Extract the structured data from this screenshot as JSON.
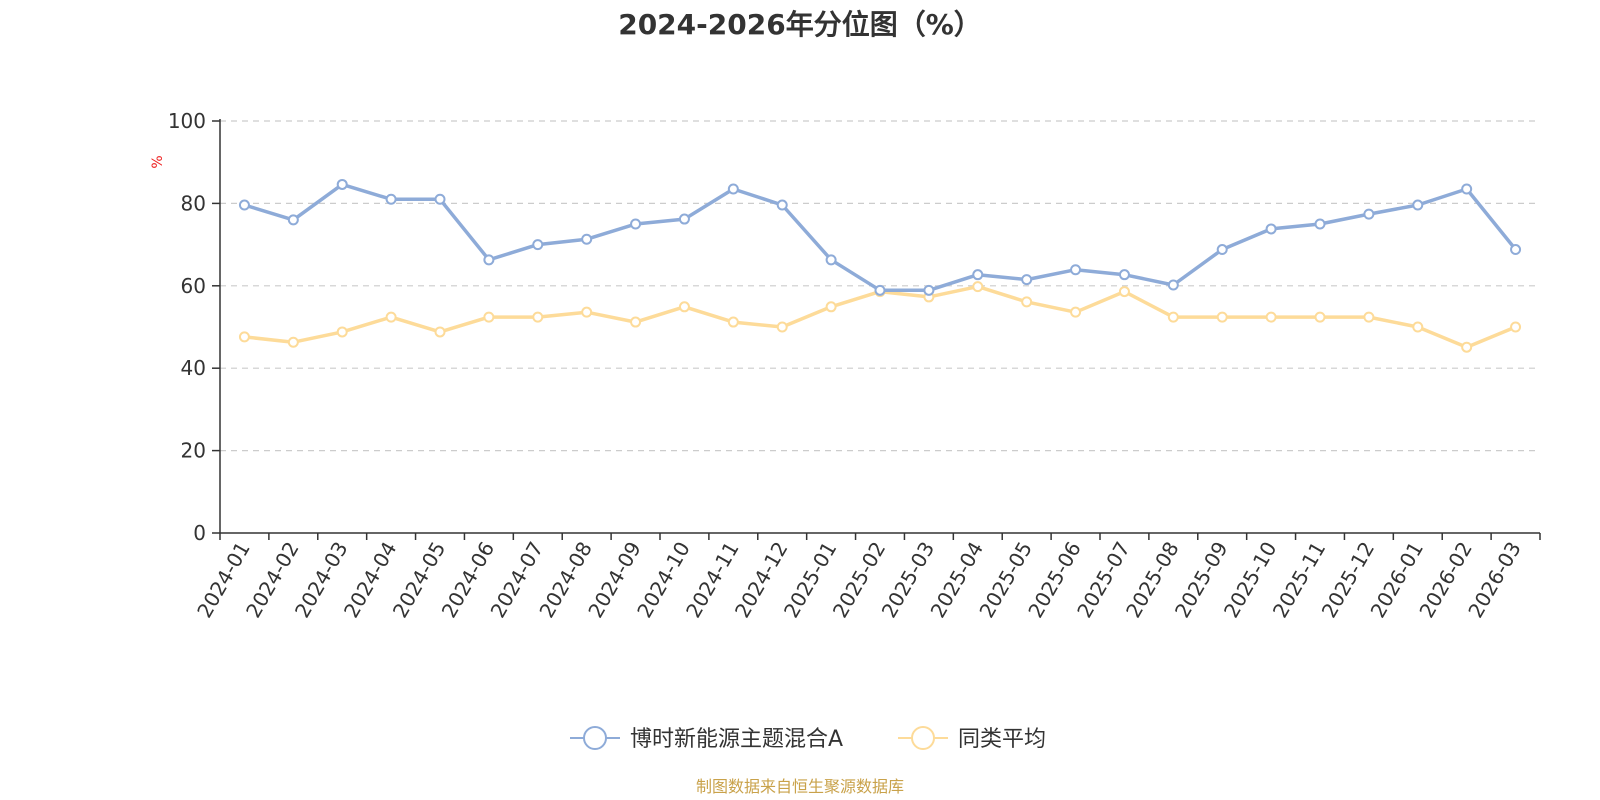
{
  "chart_data": {
    "type": "line",
    "title": "2024-2026年分位图（%）",
    "ylabel": "%",
    "xlabel": "",
    "ylim": [
      0,
      100
    ],
    "yticks": [
      0,
      20,
      40,
      60,
      80,
      100
    ],
    "grid": true,
    "legend_position": "bottom",
    "categories": [
      "2024-01",
      "2024-02",
      "2024-03",
      "2024-04",
      "2024-05",
      "2024-06",
      "2024-07",
      "2024-08",
      "2024-09",
      "2024-10",
      "2024-11",
      "2024-12",
      "2025-01",
      "2025-02",
      "2025-03",
      "2025-04",
      "2025-05",
      "2025-06",
      "2025-07",
      "2025-08",
      "2025-09",
      "2025-10",
      "2025-11",
      "2025-12",
      "2026-01",
      "2026-02",
      "2026-03"
    ],
    "series": [
      {
        "name": "博时新能源主题混合A",
        "color": "#8eabd8",
        "values": [
          79.6,
          76.0,
          84.6,
          81.0,
          81.0,
          66.3,
          70.0,
          71.3,
          75.0,
          76.2,
          83.5,
          79.6,
          66.3,
          58.9,
          58.9,
          62.7,
          61.5,
          63.9,
          62.7,
          60.2,
          68.8,
          73.8,
          75.0,
          77.4,
          79.6,
          83.5,
          68.8
        ]
      },
      {
        "name": "同类平均",
        "color": "#fddb99",
        "values": [
          47.6,
          46.3,
          48.8,
          52.4,
          48.8,
          52.4,
          52.4,
          53.6,
          51.2,
          54.9,
          51.2,
          50.0,
          54.9,
          58.6,
          57.3,
          59.8,
          56.1,
          53.6,
          58.6,
          52.4,
          52.4,
          52.4,
          52.4,
          52.4,
          50.0,
          45.1,
          50.0
        ]
      }
    ],
    "source": "制图数据来自恒生聚源数据库",
    "source_color": "#c9a24a",
    "unit_color": "#ee2222",
    "axis_color": "#333333",
    "grid_color": "#cccccc"
  }
}
